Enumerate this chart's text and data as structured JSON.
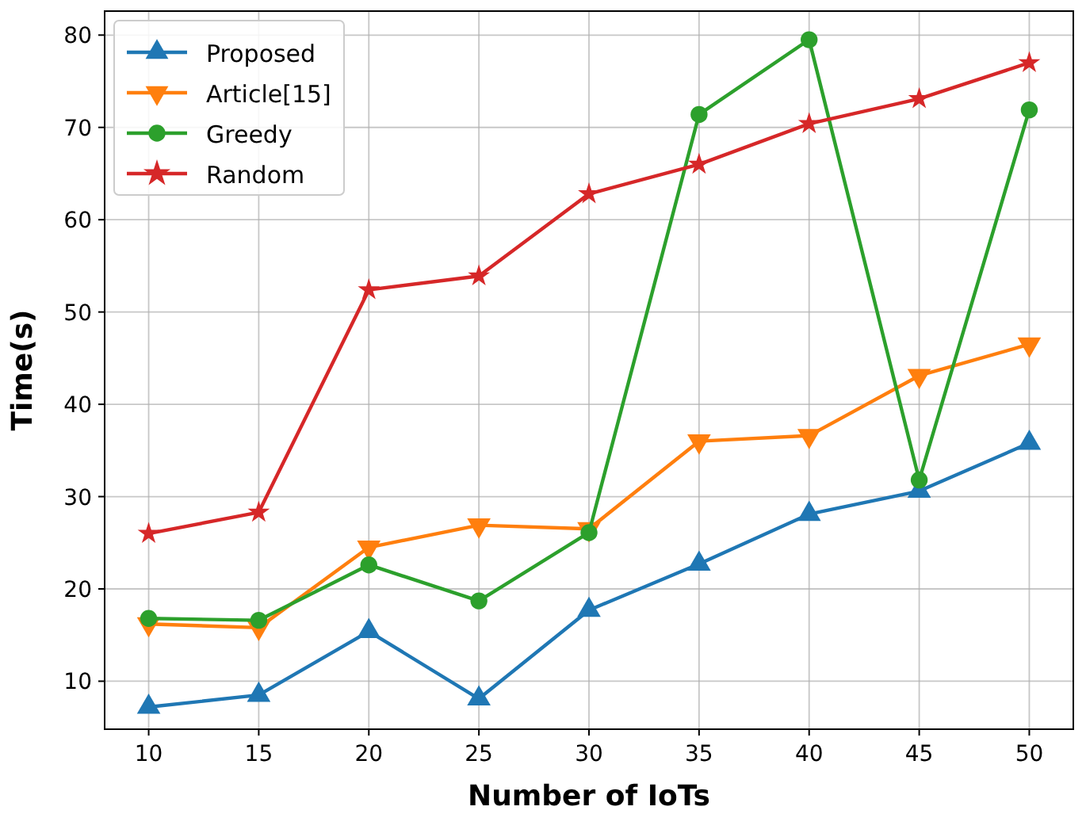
{
  "chart_data": {
    "type": "line",
    "xlabel": "Number of IoTs",
    "ylabel": "Time(s)",
    "x": [
      10,
      15,
      20,
      25,
      30,
      35,
      40,
      45,
      50
    ],
    "xlim": [
      8,
      52
    ],
    "xticks": [
      10,
      15,
      20,
      25,
      30,
      35,
      40,
      45,
      50
    ],
    "ylim": [
      4.8,
      82.6
    ],
    "yticks": [
      10,
      20,
      30,
      40,
      50,
      60,
      70,
      80
    ],
    "grid": true,
    "legend": "top left",
    "line_style": "solid",
    "series": [
      {
        "name": "Proposed",
        "color": "#1f77b4",
        "marker": "triangle",
        "values": [
          7.2,
          8.5,
          15.4,
          8.1,
          17.7,
          22.7,
          28.1,
          30.6,
          35.8
        ]
      },
      {
        "name": "Article[15]",
        "color": "#ff7f0e",
        "marker": "triangle-down",
        "values": [
          16.2,
          15.8,
          24.5,
          26.9,
          26.5,
          36.0,
          36.6,
          43.1,
          46.5
        ]
      },
      {
        "name": "Greedy",
        "color": "#2ca02c",
        "marker": "circle",
        "values": [
          16.8,
          16.6,
          22.6,
          18.7,
          26.1,
          71.4,
          79.5,
          31.8,
          71.9
        ]
      },
      {
        "name": "Random",
        "color": "#d62728",
        "marker": "star",
        "values": [
          26.0,
          28.3,
          52.4,
          53.9,
          62.8,
          66.0,
          70.4,
          73.1,
          77.0
        ]
      }
    ]
  }
}
